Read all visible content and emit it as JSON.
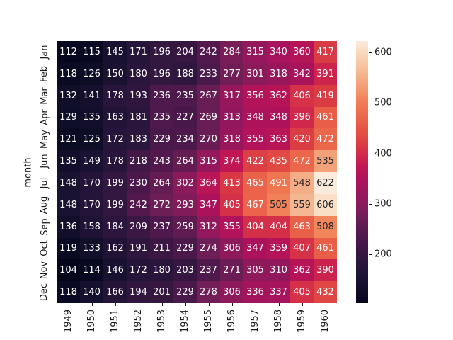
{
  "chart_data": {
    "type": "heatmap",
    "title": "",
    "xlabel": "",
    "ylabel": "month",
    "x_ticklabels": [
      "1949",
      "1950",
      "1951",
      "1952",
      "1953",
      "1954",
      "1955",
      "1956",
      "1957",
      "1958",
      "1959",
      "1960"
    ],
    "y_ticklabels": [
      "Jan",
      "Feb",
      "Mar",
      "Apr",
      "May",
      "Jun",
      "Jul",
      "Aug",
      "Sep",
      "Oct",
      "Nov",
      "Dec"
    ],
    "values": [
      [
        112,
        115,
        145,
        171,
        196,
        204,
        242,
        284,
        315,
        340,
        360,
        417
      ],
      [
        118,
        126,
        150,
        180,
        196,
        188,
        233,
        277,
        301,
        318,
        342,
        391
      ],
      [
        132,
        141,
        178,
        193,
        236,
        235,
        267,
        317,
        356,
        362,
        406,
        419
      ],
      [
        129,
        135,
        163,
        181,
        235,
        227,
        269,
        313,
        348,
        348,
        396,
        461
      ],
      [
        121,
        125,
        172,
        183,
        229,
        234,
        270,
        318,
        355,
        363,
        420,
        472
      ],
      [
        135,
        149,
        178,
        218,
        243,
        264,
        315,
        374,
        422,
        435,
        472,
        535
      ],
      [
        148,
        170,
        199,
        230,
        264,
        302,
        364,
        413,
        465,
        491,
        548,
        622
      ],
      [
        148,
        170,
        199,
        242,
        272,
        293,
        347,
        405,
        467,
        505,
        559,
        606
      ],
      [
        136,
        158,
        184,
        209,
        237,
        259,
        312,
        355,
        404,
        404,
        463,
        508
      ],
      [
        119,
        133,
        162,
        191,
        211,
        229,
        274,
        306,
        347,
        359,
        407,
        461
      ],
      [
        104,
        114,
        146,
        172,
        180,
        203,
        237,
        271,
        305,
        310,
        362,
        390
      ],
      [
        118,
        140,
        166,
        194,
        201,
        229,
        278,
        306,
        336,
        337,
        405,
        432
      ]
    ],
    "vmin": 104,
    "vmax": 622,
    "annotations_on": true,
    "grid": false,
    "colorbar": {
      "position": "right",
      "ticks": [
        200,
        300,
        400,
        500,
        600
      ]
    },
    "colormap": {
      "name": "rocket",
      "stops": [
        {
          "v": 104,
          "c": "#04051B"
        },
        {
          "v": 125,
          "c": "#0D0D26"
        },
        {
          "v": 150,
          "c": "#1B1232"
        },
        {
          "v": 175,
          "c": "#27153B"
        },
        {
          "v": 200,
          "c": "#341740"
        },
        {
          "v": 225,
          "c": "#47184A"
        },
        {
          "v": 250,
          "c": "#581A50"
        },
        {
          "v": 275,
          "c": "#6F1E56"
        },
        {
          "v": 300,
          "c": "#8A1A5B"
        },
        {
          "v": 325,
          "c": "#9C155D"
        },
        {
          "v": 350,
          "c": "#AE125B"
        },
        {
          "v": 375,
          "c": "#C11754"
        },
        {
          "v": 400,
          "c": "#D22B49"
        },
        {
          "v": 425,
          "c": "#DD4243"
        },
        {
          "v": 450,
          "c": "#E65545"
        },
        {
          "v": 475,
          "c": "#EC6A4C"
        },
        {
          "v": 500,
          "c": "#F07C53"
        },
        {
          "v": 525,
          "c": "#F2976E"
        },
        {
          "v": 550,
          "c": "#F4AF88"
        },
        {
          "v": 575,
          "c": "#F6C5A2"
        },
        {
          "v": 600,
          "c": "#F8DABE"
        },
        {
          "v": 622,
          "c": "#FAEBDD"
        }
      ]
    },
    "annotation_text": {
      "light_color": "#FFFFFF",
      "dark_color": "#262626",
      "dark_text_min_value": 500
    },
    "tick_label_color": "#1A1A1A",
    "background_color": "#FFFFFF"
  }
}
